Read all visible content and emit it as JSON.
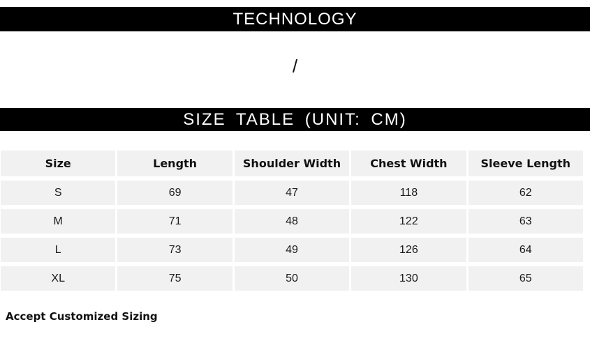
{
  "technology_banner": {
    "label": "TECHNOLOGY"
  },
  "divider": {
    "slash": "/"
  },
  "size_table_banner": {
    "label": "SIZE TABLE（UNIT：CM）"
  },
  "size_table": {
    "columns": [
      "Size",
      "Length",
      "Shoulder Width",
      "Chest Width",
      "Sleeve Length"
    ],
    "rows": [
      [
        "S",
        "69",
        "47",
        "118",
        "62"
      ],
      [
        "M",
        "71",
        "48",
        "122",
        "63"
      ],
      [
        "L",
        "73",
        "49",
        "126",
        "64"
      ],
      [
        "XL",
        "75",
        "50",
        "130",
        "65"
      ]
    ]
  },
  "footer_note": {
    "label": "Accept Customized Sizing"
  },
  "colors": {
    "page_bg": "#ffffff",
    "banner_bg": "#000000",
    "banner_text": "#ffffff",
    "cell_bg": "#f1f1f1",
    "cell_text": "#1a1a1a"
  }
}
